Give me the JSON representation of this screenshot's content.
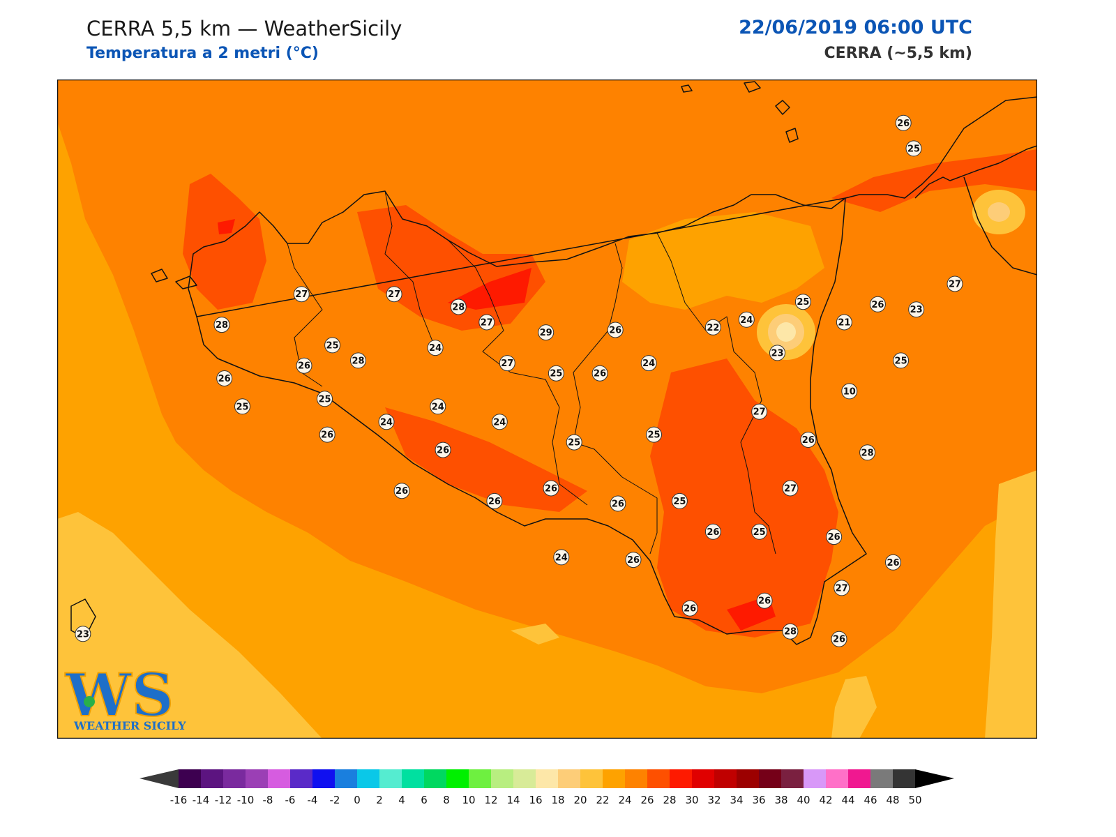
{
  "header": {
    "title": "CERRA 5,5 km — WeatherSicily",
    "subtitle": "Temperatura a 2 metri (°C)",
    "datetime": "22/06/2019 06:00 UTC",
    "model": "CERRA (~5,5 km)"
  },
  "logo": {
    "mark": "WS",
    "name": "WEATHER SICILY"
  },
  "colors": {
    "t22": "#fec33a",
    "t24": "#fea200",
    "t26": "#fe8200",
    "t28": "#fe5000",
    "t30": "#fe1a00",
    "coast": "#111111"
  },
  "stations": [
    {
      "value": "25",
      "lon": 15.24,
      "lat": 38.7
    },
    {
      "value": "26",
      "lon": 15.2,
      "lat": 38.8
    },
    {
      "value": "27",
      "lon": 12.86,
      "lat": 38.13
    },
    {
      "value": "27",
      "lon": 13.22,
      "lat": 38.13
    },
    {
      "value": "28",
      "lon": 13.47,
      "lat": 38.08
    },
    {
      "value": "28",
      "lon": 12.55,
      "lat": 38.01
    },
    {
      "value": "25",
      "lon": 12.98,
      "lat": 37.93
    },
    {
      "value": "26",
      "lon": 12.87,
      "lat": 37.85
    },
    {
      "value": "26",
      "lon": 12.56,
      "lat": 37.8
    },
    {
      "value": "25",
      "lon": 12.95,
      "lat": 37.72
    },
    {
      "value": "25",
      "lon": 12.63,
      "lat": 37.69
    },
    {
      "value": "28",
      "lon": 13.08,
      "lat": 37.87
    },
    {
      "value": "24",
      "lon": 13.38,
      "lat": 37.92
    },
    {
      "value": "27",
      "lon": 13.58,
      "lat": 38.02
    },
    {
      "value": "29",
      "lon": 13.81,
      "lat": 37.98
    },
    {
      "value": "27",
      "lon": 13.66,
      "lat": 37.86
    },
    {
      "value": "25",
      "lon": 13.85,
      "lat": 37.82
    },
    {
      "value": "26",
      "lon": 14.02,
      "lat": 37.82
    },
    {
      "value": "26",
      "lon": 14.08,
      "lat": 37.99
    },
    {
      "value": "24",
      "lon": 13.39,
      "lat": 37.69
    },
    {
      "value": "24",
      "lon": 13.19,
      "lat": 37.63
    },
    {
      "value": "24",
      "lon": 13.63,
      "lat": 37.63
    },
    {
      "value": "26",
      "lon": 12.96,
      "lat": 37.58
    },
    {
      "value": "26",
      "lon": 13.41,
      "lat": 37.52
    },
    {
      "value": "25",
      "lon": 13.92,
      "lat": 37.55
    },
    {
      "value": "25",
      "lon": 14.23,
      "lat": 37.58
    },
    {
      "value": "24",
      "lon": 14.21,
      "lat": 37.86
    },
    {
      "value": "22",
      "lon": 14.46,
      "lat": 38.0
    },
    {
      "value": "24",
      "lon": 14.59,
      "lat": 38.03
    },
    {
      "value": "25",
      "lon": 14.81,
      "lat": 38.1
    },
    {
      "value": "26",
      "lon": 15.1,
      "lat": 38.09
    },
    {
      "value": "27",
      "lon": 15.4,
      "lat": 38.17
    },
    {
      "value": "23",
      "lon": 15.25,
      "lat": 38.07
    },
    {
      "value": "21",
      "lon": 14.97,
      "lat": 38.02
    },
    {
      "value": "23",
      "lon": 14.71,
      "lat": 37.9
    },
    {
      "value": "25",
      "lon": 15.19,
      "lat": 37.87
    },
    {
      "value": "10",
      "lon": 14.99,
      "lat": 37.75
    },
    {
      "value": "27",
      "lon": 14.64,
      "lat": 37.67
    },
    {
      "value": "26",
      "lon": 14.83,
      "lat": 37.56
    },
    {
      "value": "28",
      "lon": 15.06,
      "lat": 37.51
    },
    {
      "value": "26",
      "lon": 13.25,
      "lat": 37.36
    },
    {
      "value": "26",
      "lon": 13.61,
      "lat": 37.32
    },
    {
      "value": "26",
      "lon": 13.83,
      "lat": 37.37
    },
    {
      "value": "26",
      "lon": 14.09,
      "lat": 37.31
    },
    {
      "value": "25",
      "lon": 14.33,
      "lat": 37.32
    },
    {
      "value": "27",
      "lon": 14.76,
      "lat": 37.37
    },
    {
      "value": "24",
      "lon": 13.87,
      "lat": 37.1
    },
    {
      "value": "26",
      "lon": 14.15,
      "lat": 37.09
    },
    {
      "value": "26",
      "lon": 14.46,
      "lat": 37.2
    },
    {
      "value": "25",
      "lon": 14.64,
      "lat": 37.2
    },
    {
      "value": "26",
      "lon": 14.93,
      "lat": 37.18
    },
    {
      "value": "26",
      "lon": 15.16,
      "lat": 37.08
    },
    {
      "value": "27",
      "lon": 14.96,
      "lat": 36.98
    },
    {
      "value": "26",
      "lon": 14.66,
      "lat": 36.93
    },
    {
      "value": "26",
      "lon": 14.37,
      "lat": 36.9
    },
    {
      "value": "28",
      "lon": 14.76,
      "lat": 36.81
    },
    {
      "value": "26",
      "lon": 14.95,
      "lat": 36.78
    },
    {
      "value": "23",
      "lon": 12.01,
      "lat": 36.8
    }
  ],
  "colorbar": {
    "ticks": [
      "-16",
      "-14",
      "-12",
      "-10",
      "-8",
      "-6",
      "-4",
      "-2",
      "0",
      "2",
      "4",
      "6",
      "8",
      "10",
      "12",
      "14",
      "16",
      "18",
      "20",
      "22",
      "24",
      "26",
      "28",
      "30",
      "32",
      "34",
      "36",
      "38",
      "40",
      "42",
      "44",
      "46",
      "48",
      "50"
    ],
    "colors": [
      "#3d0050",
      "#5c1480",
      "#7a2a9e",
      "#9b3fb5",
      "#d65ce0",
      "#5a2ac8",
      "#1010f0",
      "#1a7fde",
      "#0ac8e8",
      "#55ecd0",
      "#00e0a0",
      "#00d860",
      "#00f000",
      "#6ef040",
      "#b8ee80",
      "#d8eb98",
      "#fde7a8",
      "#fdcd78",
      "#fec33a",
      "#fea200",
      "#fe8200",
      "#fe5000",
      "#fe1a00",
      "#e00000",
      "#c00000",
      "#9c0000",
      "#750018",
      "#7a2040",
      "#d898f8",
      "#ff70c8",
      "#f01890",
      "#7a7a7a",
      "#343434"
    ]
  }
}
